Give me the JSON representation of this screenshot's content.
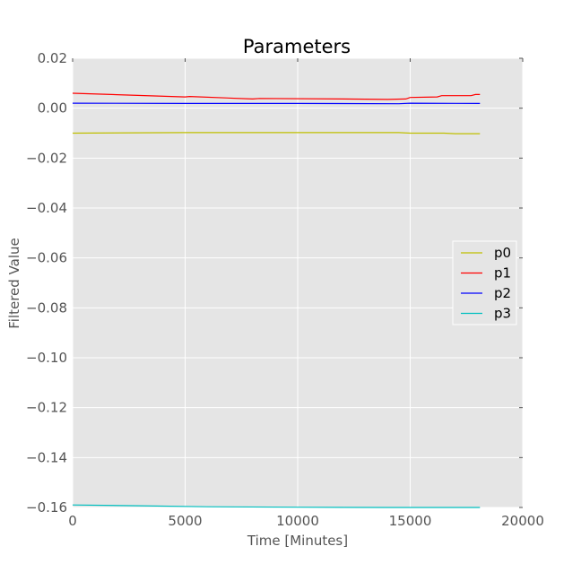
{
  "chart_data": {
    "type": "line",
    "title": "Parameters",
    "xlabel": "Time [Minutes]",
    "ylabel": "Filtered Value",
    "xlim": [
      0,
      20000
    ],
    "ylim": [
      -0.16,
      0.02
    ],
    "xticks": [
      0,
      5000,
      10000,
      15000,
      20000
    ],
    "xtick_labels": [
      "0",
      "5000",
      "10000",
      "15000",
      "20000"
    ],
    "yticks": [
      0.02,
      0.0,
      -0.02,
      -0.04,
      -0.06,
      -0.08,
      -0.1,
      -0.12,
      -0.14,
      -0.16
    ],
    "ytick_labels": [
      "0.02",
      "0.00",
      "−0.02",
      "−0.04",
      "−0.06",
      "−0.08",
      "−0.10",
      "−0.12",
      "−0.14",
      "−0.16"
    ],
    "grid": true,
    "legend_position": "center-right",
    "background": "#e5e5e5",
    "series": [
      {
        "name": "p0",
        "color": "#bfbf00",
        "points": [
          [
            0,
            -0.01
          ],
          [
            5000,
            -0.0098
          ],
          [
            10000,
            -0.0098
          ],
          [
            14500,
            -0.0098
          ],
          [
            15000,
            -0.01
          ],
          [
            16500,
            -0.01
          ],
          [
            17000,
            -0.0102
          ],
          [
            18100,
            -0.0102
          ]
        ]
      },
      {
        "name": "p1",
        "color": "#ff0000",
        "points": [
          [
            0,
            0.006
          ],
          [
            5000,
            0.0045
          ],
          [
            5200,
            0.0047
          ],
          [
            8000,
            0.0037
          ],
          [
            8300,
            0.0039
          ],
          [
            12000,
            0.0037
          ],
          [
            14000,
            0.0035
          ],
          [
            14800,
            0.0037
          ],
          [
            15000,
            0.0043
          ],
          [
            16200,
            0.0045
          ],
          [
            16400,
            0.005
          ],
          [
            17700,
            0.005
          ],
          [
            17900,
            0.0055
          ],
          [
            18100,
            0.0055
          ]
        ]
      },
      {
        "name": "p2",
        "color": "#0000ff",
        "points": [
          [
            0,
            0.002
          ],
          [
            5000,
            0.0019
          ],
          [
            10000,
            0.0019
          ],
          [
            14500,
            0.0018
          ],
          [
            15000,
            0.002
          ],
          [
            18100,
            0.0019
          ]
        ]
      },
      {
        "name": "p3",
        "color": "#00bfbf",
        "points": [
          [
            0,
            -0.159
          ],
          [
            3000,
            -0.1593
          ],
          [
            6000,
            -0.1597
          ],
          [
            10000,
            -0.1599
          ],
          [
            14000,
            -0.16
          ],
          [
            18100,
            -0.16
          ]
        ]
      }
    ]
  }
}
